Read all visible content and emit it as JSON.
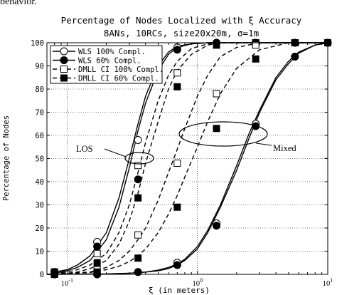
{
  "caption_fragment": "behavior.",
  "chart_data": {
    "type": "line",
    "title": "Percentage of Nodes Localized with ξ Accuracy",
    "subtitle": "8ANs, 10RCs, size20x20m, σ=1m",
    "xlabel": "ξ (in meters)",
    "ylabel": "Percentage of Nodes",
    "xscale": "log",
    "xlim": [
      0.07,
      10
    ],
    "ylim": [
      0,
      100
    ],
    "x_ticks": [
      {
        "value": 0.1,
        "base": "10",
        "exp": "-1"
      },
      {
        "value": 1,
        "base": "10",
        "exp": "0"
      },
      {
        "value": 10,
        "base": "10",
        "exp": "1"
      }
    ],
    "y_ticks": [
      0,
      10,
      20,
      30,
      40,
      50,
      60,
      70,
      80,
      90,
      100
    ],
    "grid": true,
    "legend_position": "top-left",
    "annotations": [
      {
        "text": "LOS"
      },
      {
        "text": "Mixed"
      }
    ],
    "series": [
      {
        "name": "WLS 100% Compl.",
        "group": "LOS",
        "line": "solid",
        "marker": "open-circle",
        "x": [
          0.08,
          0.1,
          0.12,
          0.15,
          0.2,
          0.25,
          0.3,
          0.35,
          0.4,
          0.5,
          0.6,
          0.7,
          0.9,
          1.2,
          1.5,
          2,
          3,
          5,
          10
        ],
        "y": [
          1,
          2,
          4,
          8,
          18,
          33,
          50,
          65,
          77,
          90,
          96,
          98.5,
          99.5,
          100,
          100,
          100,
          100,
          100,
          100
        ],
        "mx": [
          0.08,
          0.17,
          0.35,
          0.7,
          1.4,
          2.8,
          5.6,
          10
        ],
        "my": [
          1,
          14,
          58,
          98,
          100,
          100,
          100,
          100
        ]
      },
      {
        "name": "WLS 60% Compl.",
        "group": "LOS",
        "line": "solid",
        "marker": "filled-circle",
        "x": [
          0.08,
          0.1,
          0.12,
          0.15,
          0.2,
          0.25,
          0.3,
          0.35,
          0.4,
          0.5,
          0.6,
          0.7,
          0.9,
          1.2,
          1.5,
          2,
          3,
          5,
          10
        ],
        "y": [
          0.5,
          1.5,
          3,
          6,
          15,
          29,
          46,
          62,
          74,
          88,
          95,
          98,
          99.5,
          100,
          100,
          100,
          100,
          100,
          100
        ],
        "mx": [
          0.08,
          0.17,
          0.35,
          0.7,
          1.4,
          2.8,
          5.6,
          10
        ],
        "my": [
          1,
          12,
          41,
          97,
          100,
          100,
          100,
          100
        ]
      },
      {
        "name": "DMLL CI 100% Compl.",
        "group": "LOS",
        "line": "dashed",
        "marker": "open-square",
        "x": [
          0.08,
          0.1,
          0.12,
          0.15,
          0.2,
          0.25,
          0.3,
          0.35,
          0.4,
          0.5,
          0.6,
          0.7,
          0.9,
          1.2,
          1.5,
          2,
          3,
          5,
          10
        ],
        "y": [
          0.5,
          1,
          2,
          4,
          9,
          18,
          30,
          44,
          57,
          75,
          86,
          92,
          97.5,
          99.5,
          100,
          100,
          100,
          100,
          100
        ],
        "mx": [
          0.08,
          0.17,
          0.35,
          0.7,
          1.4,
          2.8,
          5.6,
          10
        ],
        "my": [
          1,
          9,
          47,
          87,
          99,
          100,
          100,
          100
        ]
      },
      {
        "name": "DMLL CI 60% Compl.",
        "group": "LOS",
        "line": "dashed",
        "marker": "filled-square",
        "x": [
          0.08,
          0.1,
          0.12,
          0.15,
          0.2,
          0.25,
          0.3,
          0.35,
          0.4,
          0.5,
          0.6,
          0.7,
          0.9,
          1.2,
          1.5,
          2,
          3,
          5,
          10
        ],
        "y": [
          0.3,
          0.5,
          1,
          2.5,
          6,
          13,
          23,
          35,
          48,
          66,
          80,
          88,
          95,
          99,
          100,
          100,
          100,
          100,
          100
        ],
        "mx": [
          0.08,
          0.17,
          0.35,
          0.7,
          1.4,
          2.8,
          5.6,
          10
        ],
        "my": [
          1,
          5,
          33,
          81,
          99,
          100,
          100,
          100
        ]
      },
      {
        "name": "WLS 100% Compl.",
        "group": "Mixed",
        "line": "solid",
        "marker": "open-circle",
        "x": [
          0.07,
          0.2,
          0.3,
          0.4,
          0.5,
          0.6,
          0.7,
          0.8,
          1,
          1.2,
          1.5,
          2,
          2.5,
          3,
          4,
          5,
          6,
          8,
          10
        ],
        "y": [
          0,
          0.2,
          0.5,
          1,
          1.8,
          3,
          4.5,
          6.5,
          12,
          19,
          30,
          47,
          61,
          71,
          85,
          92,
          96,
          99,
          100
        ],
        "mx": [
          0.08,
          0.17,
          0.35,
          0.7,
          1.4,
          2.8,
          5.6,
          10
        ],
        "my": [
          0,
          0,
          1,
          5,
          22,
          65,
          94,
          100
        ]
      },
      {
        "name": "WLS 60% Compl.",
        "group": "Mixed",
        "line": "solid",
        "marker": "filled-circle",
        "x": [
          0.07,
          0.2,
          0.3,
          0.4,
          0.5,
          0.6,
          0.7,
          0.8,
          1,
          1.2,
          1.5,
          2,
          2.5,
          3,
          4,
          5,
          6,
          8,
          10
        ],
        "y": [
          0,
          0.2,
          0.5,
          1,
          1.5,
          2.5,
          4,
          6,
          11,
          18,
          29,
          45,
          59,
          70,
          84,
          91,
          95.5,
          99,
          100
        ],
        "mx": [
          0.08,
          0.17,
          0.35,
          0.7,
          1.4,
          2.8,
          5.6,
          10
        ],
        "my": [
          0,
          0,
          1,
          4,
          21,
          64,
          94,
          100
        ]
      },
      {
        "name": "DMLL CI 100% Compl.",
        "group": "Mixed",
        "line": "dashed",
        "marker": "open-square",
        "x": [
          0.07,
          0.1,
          0.15,
          0.2,
          0.25,
          0.3,
          0.35,
          0.4,
          0.5,
          0.6,
          0.7,
          0.8,
          1,
          1.2,
          1.5,
          2,
          3,
          5,
          10
        ],
        "y": [
          0,
          0.5,
          1,
          3,
          6,
          10,
          15,
          20,
          32,
          44,
          54,
          63,
          77,
          86,
          94,
          98,
          100,
          100,
          100
        ],
        "mx": [
          0.08,
          0.17,
          0.35,
          0.7,
          1.4,
          2.8,
          5.6,
          10
        ],
        "my": [
          0,
          2,
          17,
          48,
          78,
          99,
          100,
          100
        ]
      },
      {
        "name": "DMLL CI 60% Compl.",
        "group": "Mixed",
        "line": "dashed",
        "marker": "filled-square",
        "x": [
          0.07,
          0.1,
          0.15,
          0.2,
          0.25,
          0.3,
          0.35,
          0.4,
          0.5,
          0.6,
          0.7,
          0.8,
          1,
          1.2,
          1.5,
          2,
          3,
          5,
          10
        ],
        "y": [
          0,
          0.3,
          0.8,
          2,
          3.5,
          5.5,
          8,
          11,
          18,
          26,
          34,
          42,
          55,
          66,
          78,
          89,
          97,
          100,
          100
        ],
        "mx": [
          0.08,
          0.17,
          0.35,
          0.7,
          1.4,
          2.8,
          5.6,
          10
        ],
        "my": [
          0,
          1,
          7,
          29,
          63,
          93,
          100,
          100
        ]
      }
    ]
  }
}
